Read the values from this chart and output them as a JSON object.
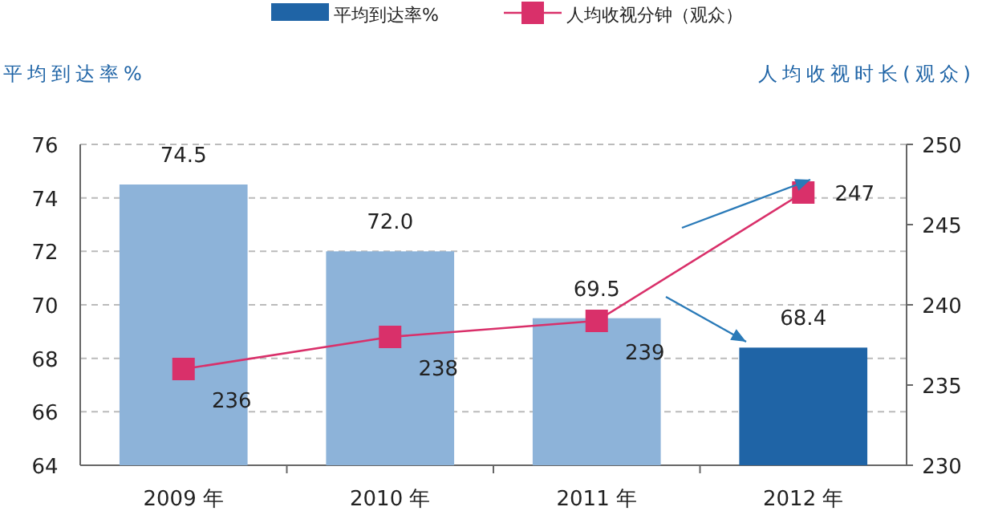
{
  "chart_data": {
    "type": "bar",
    "ylabel": "平均到达率%",
    "y2label": "人均收视时长(观众)",
    "categories": [
      "2009 年",
      "2010 年",
      "2011 年",
      "2012 年"
    ],
    "series": [
      {
        "name": "平均到达率%",
        "color": "#1f64a6",
        "colors": [
          "#8db3d9",
          "#8db3d9",
          "#8db3d9",
          "#1f64a6"
        ],
        "values": [
          74.5,
          72.0,
          69.5,
          68.4
        ],
        "value_labels": [
          "74.5",
          "72.0",
          "69.5",
          "68.4"
        ]
      },
      {
        "name": "人均收视分钟（观众）",
        "type": "line",
        "axis": "y2",
        "color": "#d9306a",
        "marker": "square",
        "values": [
          236,
          238,
          239,
          247
        ],
        "value_labels": [
          "236",
          "238",
          "239",
          "247"
        ]
      }
    ],
    "ylim": [
      64,
      76
    ],
    "yticks": [
      64,
      66,
      68,
      70,
      72,
      74,
      76
    ],
    "y2lim": [
      230,
      250
    ],
    "y2ticks": [
      230,
      235,
      240,
      245,
      250
    ],
    "grid": "y",
    "legend": "top"
  }
}
